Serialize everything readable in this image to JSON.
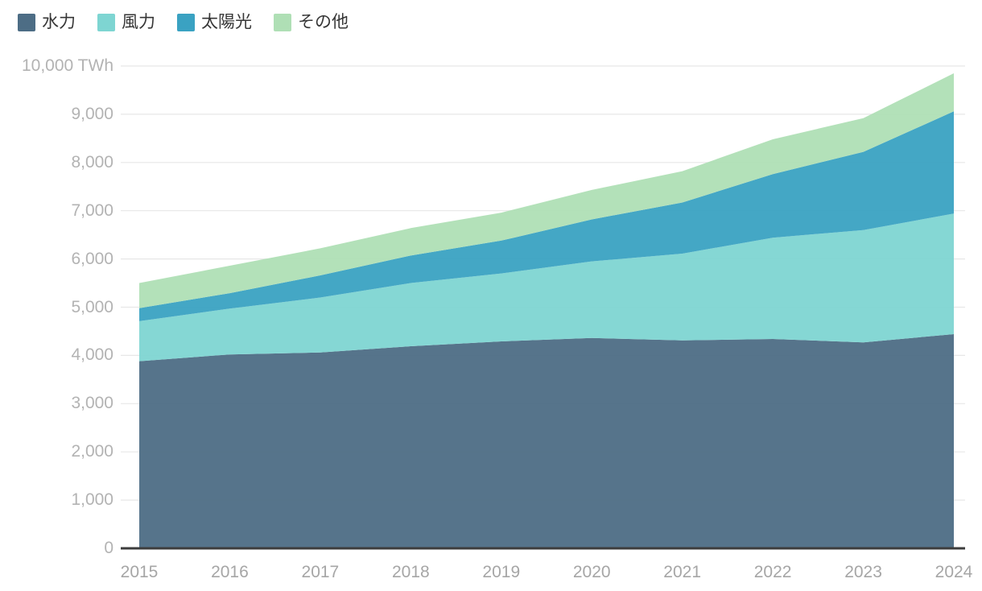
{
  "chart_data": {
    "type": "area",
    "stacked": true,
    "title": "",
    "xlabel": "",
    "ylabel": "TWh",
    "x": [
      2015,
      2016,
      2017,
      2018,
      2019,
      2020,
      2021,
      2022,
      2023,
      2024
    ],
    "series": [
      {
        "name": "水力",
        "color": "#4d6d85",
        "values": [
          3880,
          4020,
          4060,
          4190,
          4290,
          4360,
          4310,
          4340,
          4270,
          4440
        ]
      },
      {
        "name": "風力",
        "color": "#7ed5d2",
        "values": [
          830,
          950,
          1140,
          1310,
          1410,
          1590,
          1800,
          2100,
          2330,
          2500
        ]
      },
      {
        "name": "太陽光",
        "color": "#3aa2c2",
        "values": [
          270,
          320,
          460,
          570,
          680,
          870,
          1060,
          1320,
          1620,
          2120
        ]
      },
      {
        "name": "その他",
        "color": "#afdfb5",
        "values": [
          520,
          570,
          560,
          570,
          580,
          610,
          650,
          720,
          700,
          790
        ]
      }
    ],
    "ylim": [
      0,
      10000
    ],
    "ytick_labels": [
      "10,000 TWh",
      "9,000",
      "8,000",
      "7,000",
      "6,000",
      "5,000",
      "4,000",
      "3,000",
      "2,000",
      "1,000",
      "0"
    ],
    "xtick_labels": [
      "2015",
      "2016",
      "2017",
      "2018",
      "2019",
      "2020",
      "2021",
      "2022",
      "2023",
      "2024"
    ],
    "grid": true,
    "legend_position": "top-left",
    "grid_color": "#e7e7e7",
    "baseline_color": "#3d3d3d"
  }
}
